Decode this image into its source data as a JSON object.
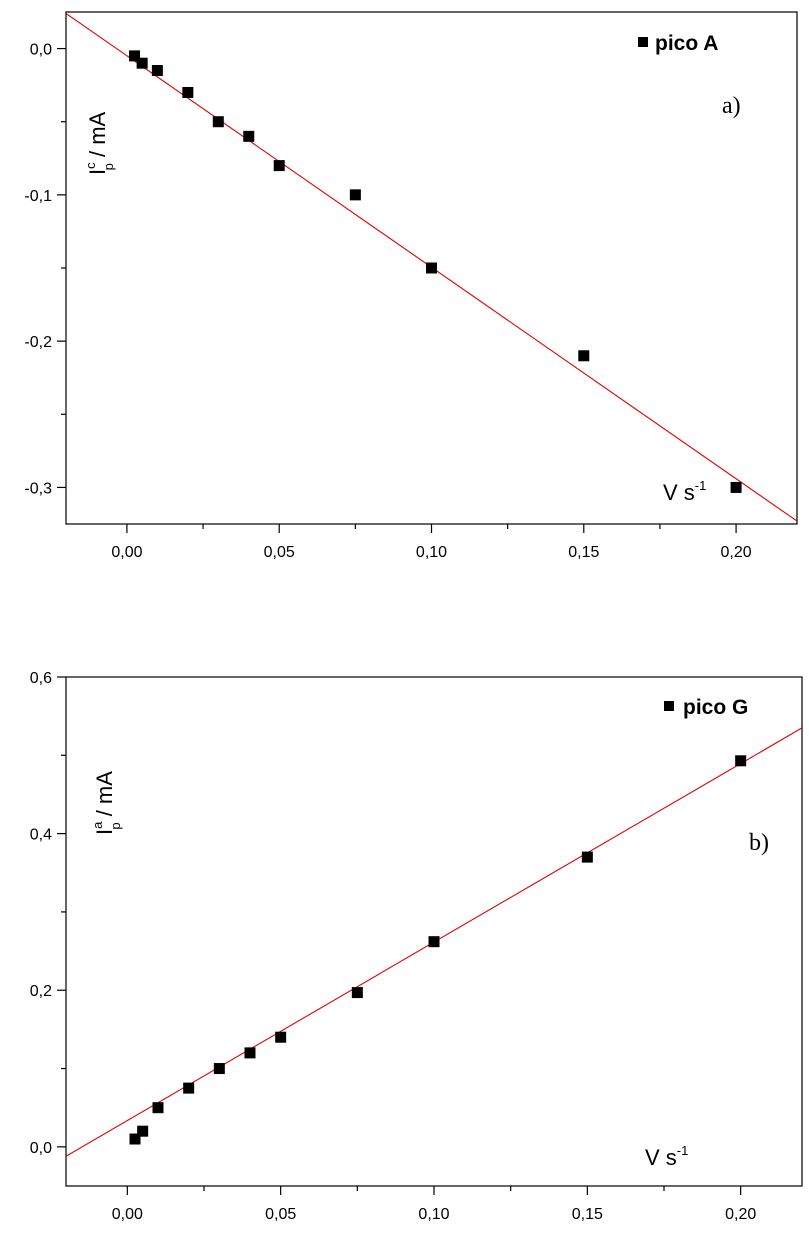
{
  "chart_data": [
    {
      "type": "scatter",
      "panel_label": "a)",
      "ylabel": {
        "main": "I",
        "sup": "c",
        "sub": "p",
        "rest": " / mA"
      },
      "xlabel": {
        "main": "V s",
        "sup": "-1"
      },
      "xlim": [
        -0.02,
        0.22
      ],
      "ylim": [
        -0.325,
        0.025
      ],
      "x_ticks": [
        0.0,
        0.05,
        0.1,
        0.15,
        0.2
      ],
      "x_tick_labels": [
        "0,00",
        "0,05",
        "0,10",
        "0,15",
        "0,20"
      ],
      "y_ticks": [
        0.0,
        -0.1,
        -0.2,
        -0.3
      ],
      "y_tick_labels": [
        "0,0",
        "-0,1",
        "-0,2",
        "-0,3"
      ],
      "legend_position": "top-right",
      "series": [
        {
          "name": "pico A",
          "marker": "square",
          "color": "#000000",
          "x": [
            0.0025,
            0.005,
            0.01,
            0.02,
            0.03,
            0.04,
            0.05,
            0.075,
            0.1,
            0.15,
            0.2
          ],
          "y": [
            -0.005,
            -0.01,
            -0.015,
            -0.03,
            -0.05,
            -0.06,
            -0.08,
            -0.1,
            -0.15,
            -0.21,
            -0.3
          ]
        }
      ],
      "fit_line": {
        "color": "#e00000",
        "x": [
          -0.02,
          0.22
        ],
        "y": [
          0.024,
          -0.323
        ]
      }
    },
    {
      "type": "scatter",
      "panel_label": "b)",
      "ylabel": {
        "main": "I",
        "sup": "a",
        "sub": "p",
        "rest": " / mA"
      },
      "xlabel": {
        "main": "V s",
        "sup": "-1"
      },
      "xlim": [
        -0.02,
        0.22
      ],
      "ylim": [
        -0.05,
        0.6
      ],
      "x_ticks": [
        0.0,
        0.05,
        0.1,
        0.15,
        0.2
      ],
      "x_tick_labels": [
        "0,00",
        "0,05",
        "0,10",
        "0,15",
        "0,20"
      ],
      "y_ticks": [
        0.0,
        0.2,
        0.4,
        0.6
      ],
      "y_tick_labels": [
        "0,0",
        "0,2",
        "0,4",
        "0,6"
      ],
      "legend_position": "top-right",
      "series": [
        {
          "name": "pico G",
          "marker": "square",
          "color": "#000000",
          "x": [
            0.0025,
            0.005,
            0.01,
            0.02,
            0.03,
            0.04,
            0.05,
            0.075,
            0.1,
            0.15,
            0.2
          ],
          "y": [
            0.01,
            0.02,
            0.05,
            0.075,
            0.1,
            0.12,
            0.14,
            0.197,
            0.262,
            0.37,
            0.493
          ]
        }
      ],
      "fit_line": {
        "color": "#e00000",
        "x": [
          -0.02,
          0.22
        ],
        "y": [
          -0.012,
          0.535
        ]
      }
    }
  ]
}
